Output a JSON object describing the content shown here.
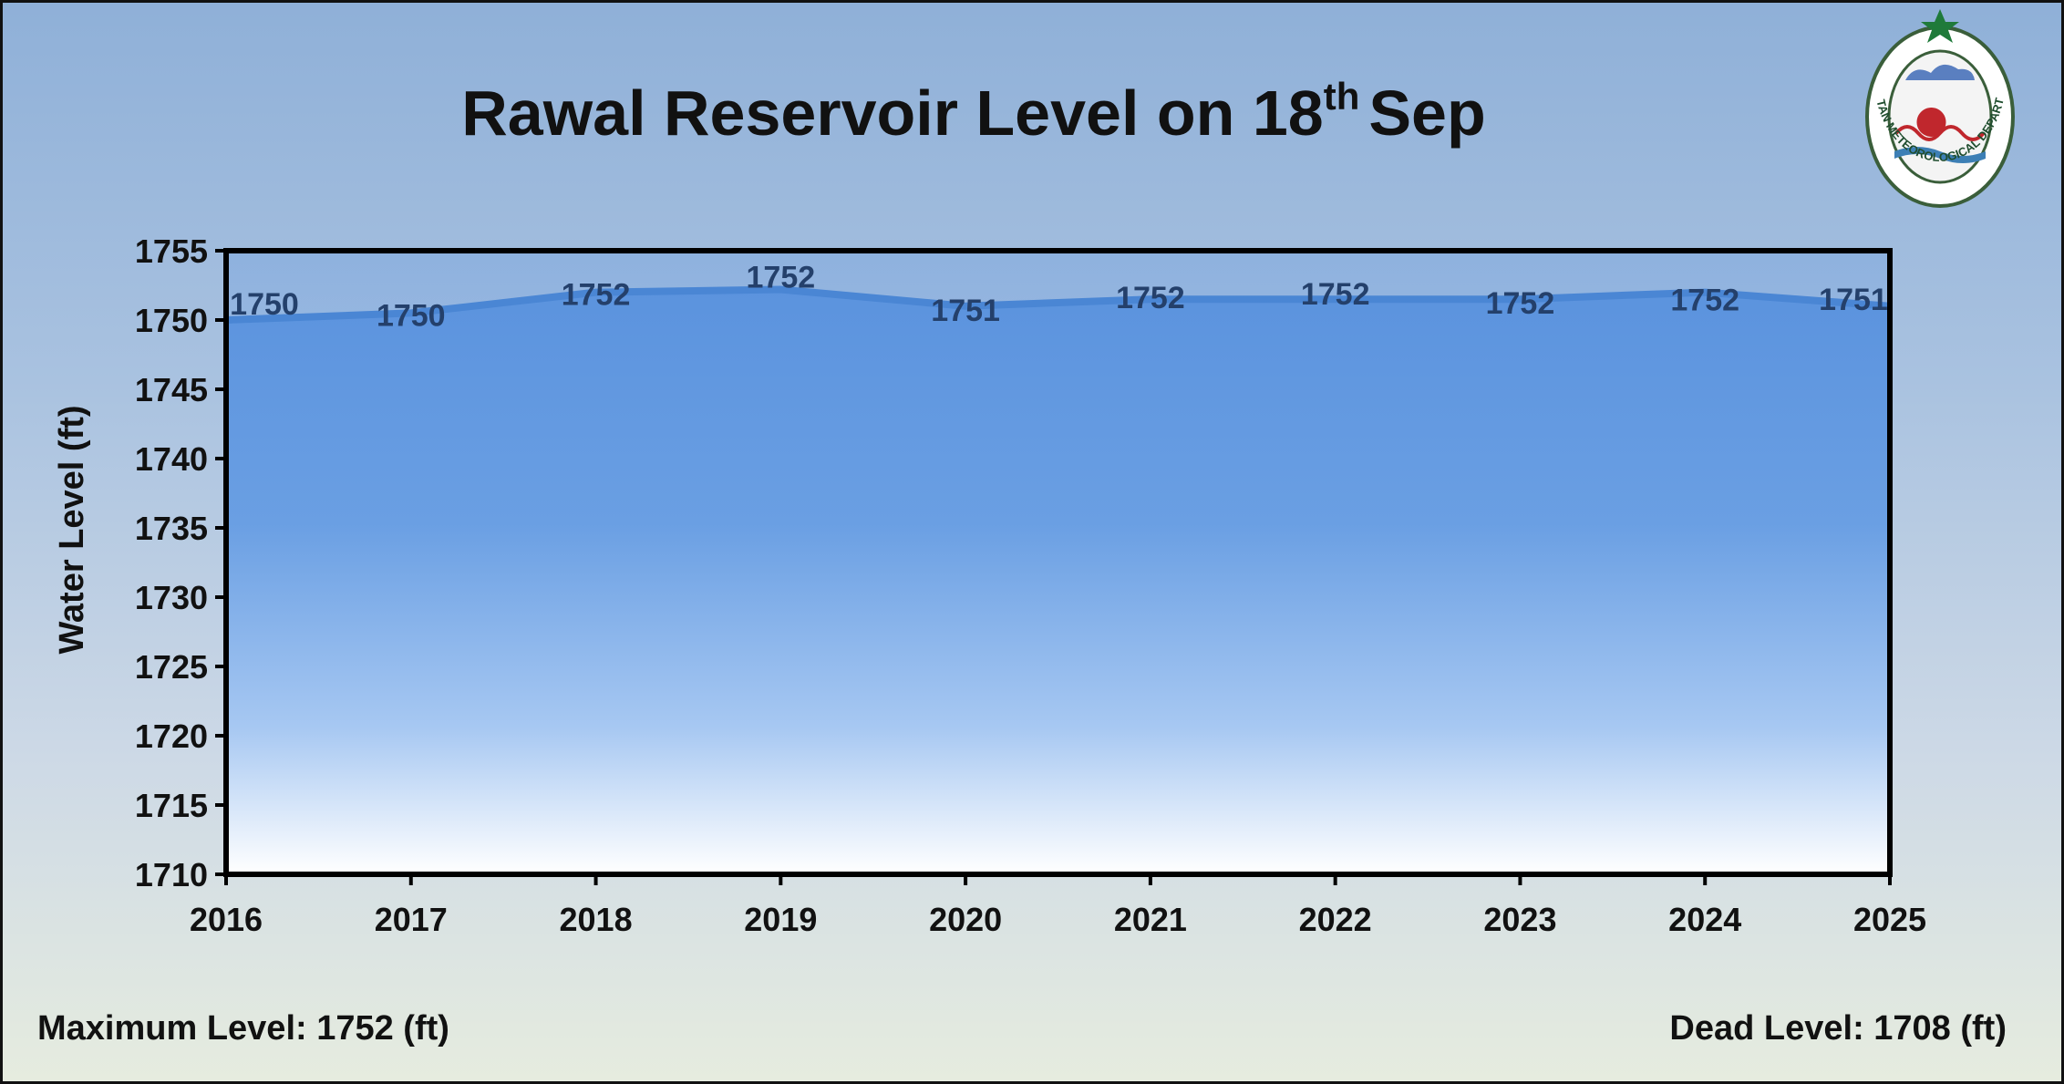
{
  "chart_data": {
    "type": "area",
    "title": "Rawal Reservoir Level on 18",
    "title_superscript": "th",
    "title_suffix": "Sep",
    "xlabel": "",
    "ylabel": "Water Level (ft)",
    "categories": [
      "2016",
      "2017",
      "2018",
      "2019",
      "2020",
      "2021",
      "2022",
      "2023",
      "2024",
      "2025"
    ],
    "series": [
      {
        "values": [
          1750,
          1750.5,
          1752,
          1752.2,
          1751,
          1751.5,
          1751.5,
          1751.5,
          1752,
          1751
        ],
        "data_labels": [
          "1750",
          "1750",
          "1752",
          "1752",
          "1751",
          "1752",
          "1752",
          "1752",
          "1752",
          "1751"
        ]
      }
    ],
    "ylim": [
      1710,
      1755
    ],
    "yticks": [
      1710,
      1715,
      1720,
      1725,
      1730,
      1735,
      1740,
      1745,
      1750,
      1755
    ],
    "grid": false,
    "legend": "none",
    "colors": {
      "area_top": "#5e97e0",
      "area_bottom": "#ffffff",
      "line": "#4a86d4",
      "data_label": "#24406b"
    }
  },
  "footer": {
    "max_level": "Maximum Level: 1752 (ft)",
    "dead_level": "Dead Level: 1708 (ft)"
  },
  "logo": {
    "text": "PAKISTAN METEOROLOGICAL DEPARTMENT"
  }
}
